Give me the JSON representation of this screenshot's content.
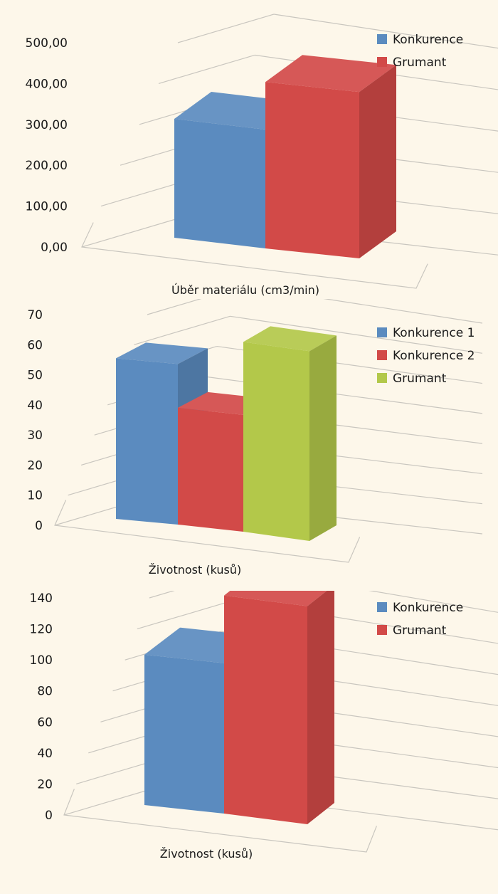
{
  "chart_data": [
    {
      "type": "bar",
      "categories": [
        "Úběr materiálu (cm3/min)"
      ],
      "series": [
        {
          "name": "Konkurence",
          "values": [
            300
          ],
          "color": "#5b8bbf"
        },
        {
          "name": "Grumant",
          "values": [
            420
          ],
          "color": "#d24a48"
        }
      ],
      "xlabel": "Úběr materiálu (cm3/min)",
      "ylim": [
        0,
        500
      ],
      "ticks": [
        "0,00",
        "100,00",
        "200,00",
        "300,00",
        "400,00",
        "500,00"
      ],
      "grid": true,
      "legend": "top-right"
    },
    {
      "type": "bar",
      "categories": [
        "Životnost (kusů)"
      ],
      "series": [
        {
          "name": "Konkurence 1",
          "values": [
            55
          ],
          "color": "#5b8bbf"
        },
        {
          "name": "Konkurence 2",
          "values": [
            40
          ],
          "color": "#d24a48"
        },
        {
          "name": "Grumant",
          "values": [
            65
          ],
          "color": "#b3c84a"
        }
      ],
      "xlabel": "Životnost (kusů)",
      "ylim": [
        0,
        70
      ],
      "ticks": [
        "0",
        "10",
        "20",
        "30",
        "40",
        "50",
        "60",
        "70"
      ],
      "grid": true,
      "legend": "top-right"
    },
    {
      "type": "bar",
      "categories": [
        "Životnost (kusů)"
      ],
      "series": [
        {
          "name": "Konkurence",
          "values": [
            100
          ],
          "color": "#5b8bbf"
        },
        {
          "name": "Grumant",
          "values": [
            145
          ],
          "color": "#d24a48"
        }
      ],
      "xlabel": "Životnost (kusů)",
      "ylim": [
        0,
        140
      ],
      "ticks": [
        "0",
        "20",
        "40",
        "60",
        "80",
        "100",
        "120",
        "140"
      ],
      "grid": true,
      "legend": "top-right"
    }
  ]
}
